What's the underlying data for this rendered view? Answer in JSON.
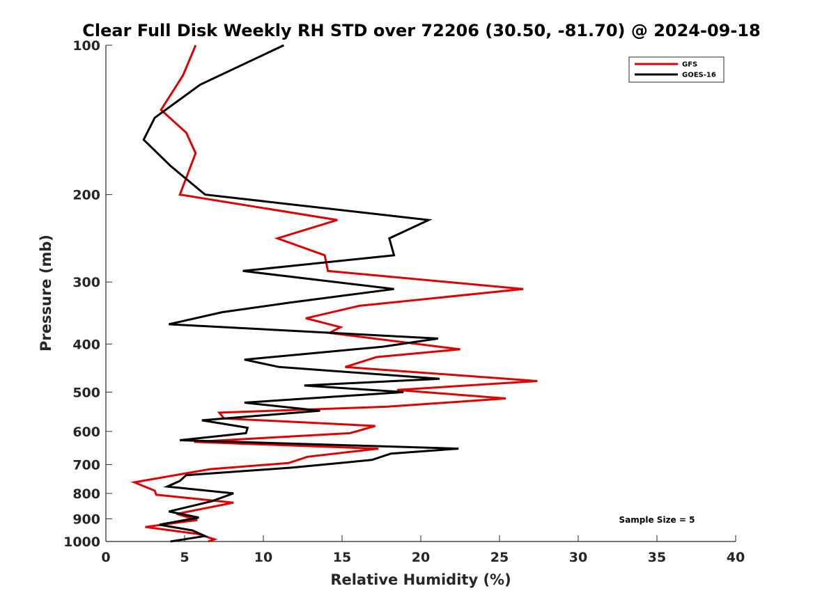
{
  "chart_data": {
    "type": "line",
    "title": "Clear Full Disk Weekly RH STD over 72206 (30.50, -81.70) @ 2024-09-18",
    "xlabel": "Relative Humidity (%)",
    "ylabel": "Pressure (mb)",
    "xlim": [
      0,
      40
    ],
    "ylim": [
      100,
      1000
    ],
    "y_scale": "log",
    "y_reversed": true,
    "x_ticks": [
      0,
      5,
      10,
      15,
      20,
      25,
      30,
      35,
      40
    ],
    "y_ticks": [
      100,
      200,
      300,
      400,
      500,
      600,
      700,
      800,
      900,
      1000
    ],
    "grid": false,
    "legend_position": "top-right",
    "annotation": "Sample Size = 5",
    "series": [
      {
        "name": "GFS",
        "color": "#e00000",
        "x": [
          5.7,
          4.9,
          3.5,
          5.1,
          5.7,
          4.7,
          14.7,
          10.9,
          13.9,
          14.1,
          26.5,
          16.1,
          12.7,
          14.9,
          14.2,
          22.5,
          17.2,
          15.2,
          27.4,
          18.5,
          25.4,
          17.9,
          7.2,
          7.5,
          17.1,
          15.5,
          5.6,
          17.3,
          12.8,
          11.6,
          6.6,
          1.8,
          3.1,
          3.2,
          8.1,
          4.5,
          5.8,
          2.5,
          5.8,
          6.9,
          6.5
        ],
        "y": [
          100,
          115,
          135,
          150,
          165,
          200,
          225,
          245,
          265,
          285,
          310,
          335,
          355,
          370,
          380,
          410,
          425,
          445,
          475,
          495,
          515,
          535,
          550,
          565,
          585,
          605,
          630,
          650,
          675,
          695,
          715,
          760,
          790,
          805,
          835,
          880,
          905,
          935,
          965,
          990,
          1000
        ]
      },
      {
        "name": "GOES-16",
        "color": "#000000",
        "x": [
          11.3,
          6.0,
          3.1,
          2.4,
          4.1,
          6.3,
          20.5,
          18.0,
          18.3,
          8.7,
          18.3,
          11.7,
          7.4,
          4.0,
          21.1,
          17.6,
          8.8,
          11.0,
          21.2,
          12.6,
          18.9,
          8.8,
          13.6,
          6.1,
          9.0,
          8.9,
          4.7,
          22.4,
          18.1,
          16.9,
          11.8,
          5.1,
          4.7,
          3.9,
          8.1,
          6.7,
          4.0,
          5.9,
          3.4,
          5.5,
          6.3,
          4.1
        ],
        "y": [
          100,
          120,
          140,
          155,
          175,
          200,
          225,
          245,
          265,
          285,
          310,
          330,
          345,
          365,
          390,
          405,
          430,
          445,
          470,
          485,
          500,
          525,
          545,
          570,
          590,
          605,
          625,
          650,
          665,
          685,
          710,
          735,
          755,
          775,
          800,
          830,
          870,
          895,
          925,
          950,
          975,
          1000
        ]
      }
    ]
  }
}
